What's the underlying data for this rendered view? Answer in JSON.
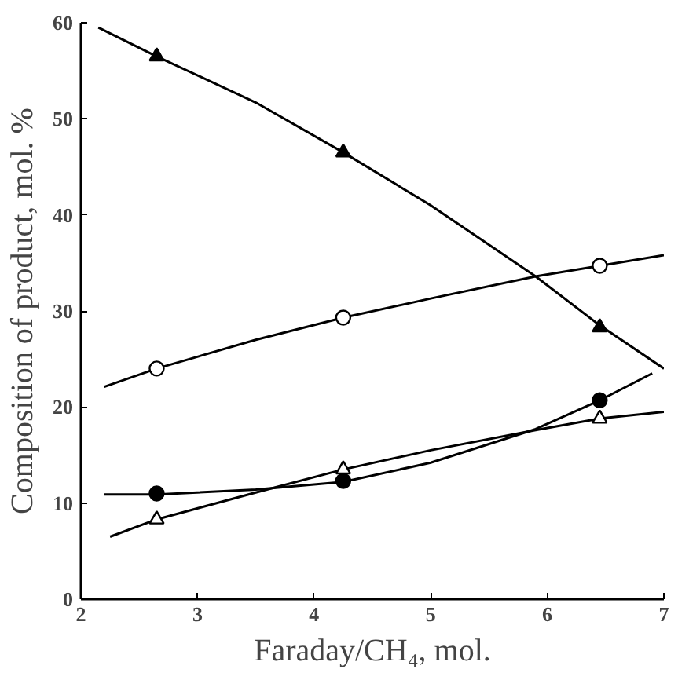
{
  "chart_data": {
    "type": "line",
    "xlabel": "Faraday/CH₄, mol.",
    "ylabel": "Composition of product, mol. %",
    "xlim": [
      2,
      7
    ],
    "ylim": [
      0,
      60
    ],
    "xticks": [
      2,
      3,
      4,
      5,
      6,
      7
    ],
    "yticks": [
      0,
      10,
      20,
      30,
      40,
      50,
      60
    ],
    "grid": false,
    "line_style": "solid",
    "marker": "none",
    "series": [
      {
        "color": "#000000",
        "x": [
          2.15,
          2.65,
          3.5,
          4.25,
          5.0,
          5.9,
          6.45,
          7.0
        ],
        "values": [
          59.5,
          56.5,
          51.7,
          46.5,
          41,
          33.6,
          28.5,
          24
        ]
      },
      {
        "type": "scatter",
        "marker": "triangle",
        "color": "#000000",
        "x": [
          2.65,
          4.25,
          6.45
        ],
        "values": [
          56.5,
          46.5,
          28.3
        ]
      },
      {
        "color": "#000000",
        "x": [
          2.2,
          2.65,
          3.5,
          4.25,
          5.0,
          5.9,
          6.45,
          7.0
        ],
        "values": [
          22.1,
          24,
          27,
          29.3,
          31.3,
          33.6,
          34.7,
          35.8
        ]
      },
      {
        "type": "scatter",
        "marker": "circle",
        "color": "#ffffff",
        "x": [
          2.65,
          4.25,
          6.45
        ],
        "values": [
          24,
          29.3,
          34.7
        ]
      },
      {
        "color": "#000000",
        "x": [
          2.2,
          2.65,
          3.5,
          4.25,
          5.0,
          5.9,
          6.45,
          6.9
        ],
        "values": [
          10.9,
          10.9,
          11.4,
          12.2,
          14.2,
          17.7,
          20.7,
          23.5
        ]
      },
      {
        "type": "scatter",
        "marker": "circle",
        "color": "#000000",
        "x": [
          2.65,
          4.25,
          6.45
        ],
        "values": [
          11,
          12.3,
          20.7
        ]
      },
      {
        "color": "#000000",
        "x": [
          2.25,
          2.65,
          3.5,
          4.25,
          5.0,
          5.9,
          6.45,
          7.0
        ],
        "values": [
          6.5,
          8.3,
          11.1,
          13.5,
          15.5,
          17.6,
          18.8,
          19.5
        ]
      },
      {
        "type": "scatter",
        "marker": "triangle",
        "color": "#ffffff",
        "x": [
          2.65,
          4.25,
          6.45
        ],
        "values": [
          8.3,
          13.5,
          18.8
        ]
      }
    ]
  }
}
